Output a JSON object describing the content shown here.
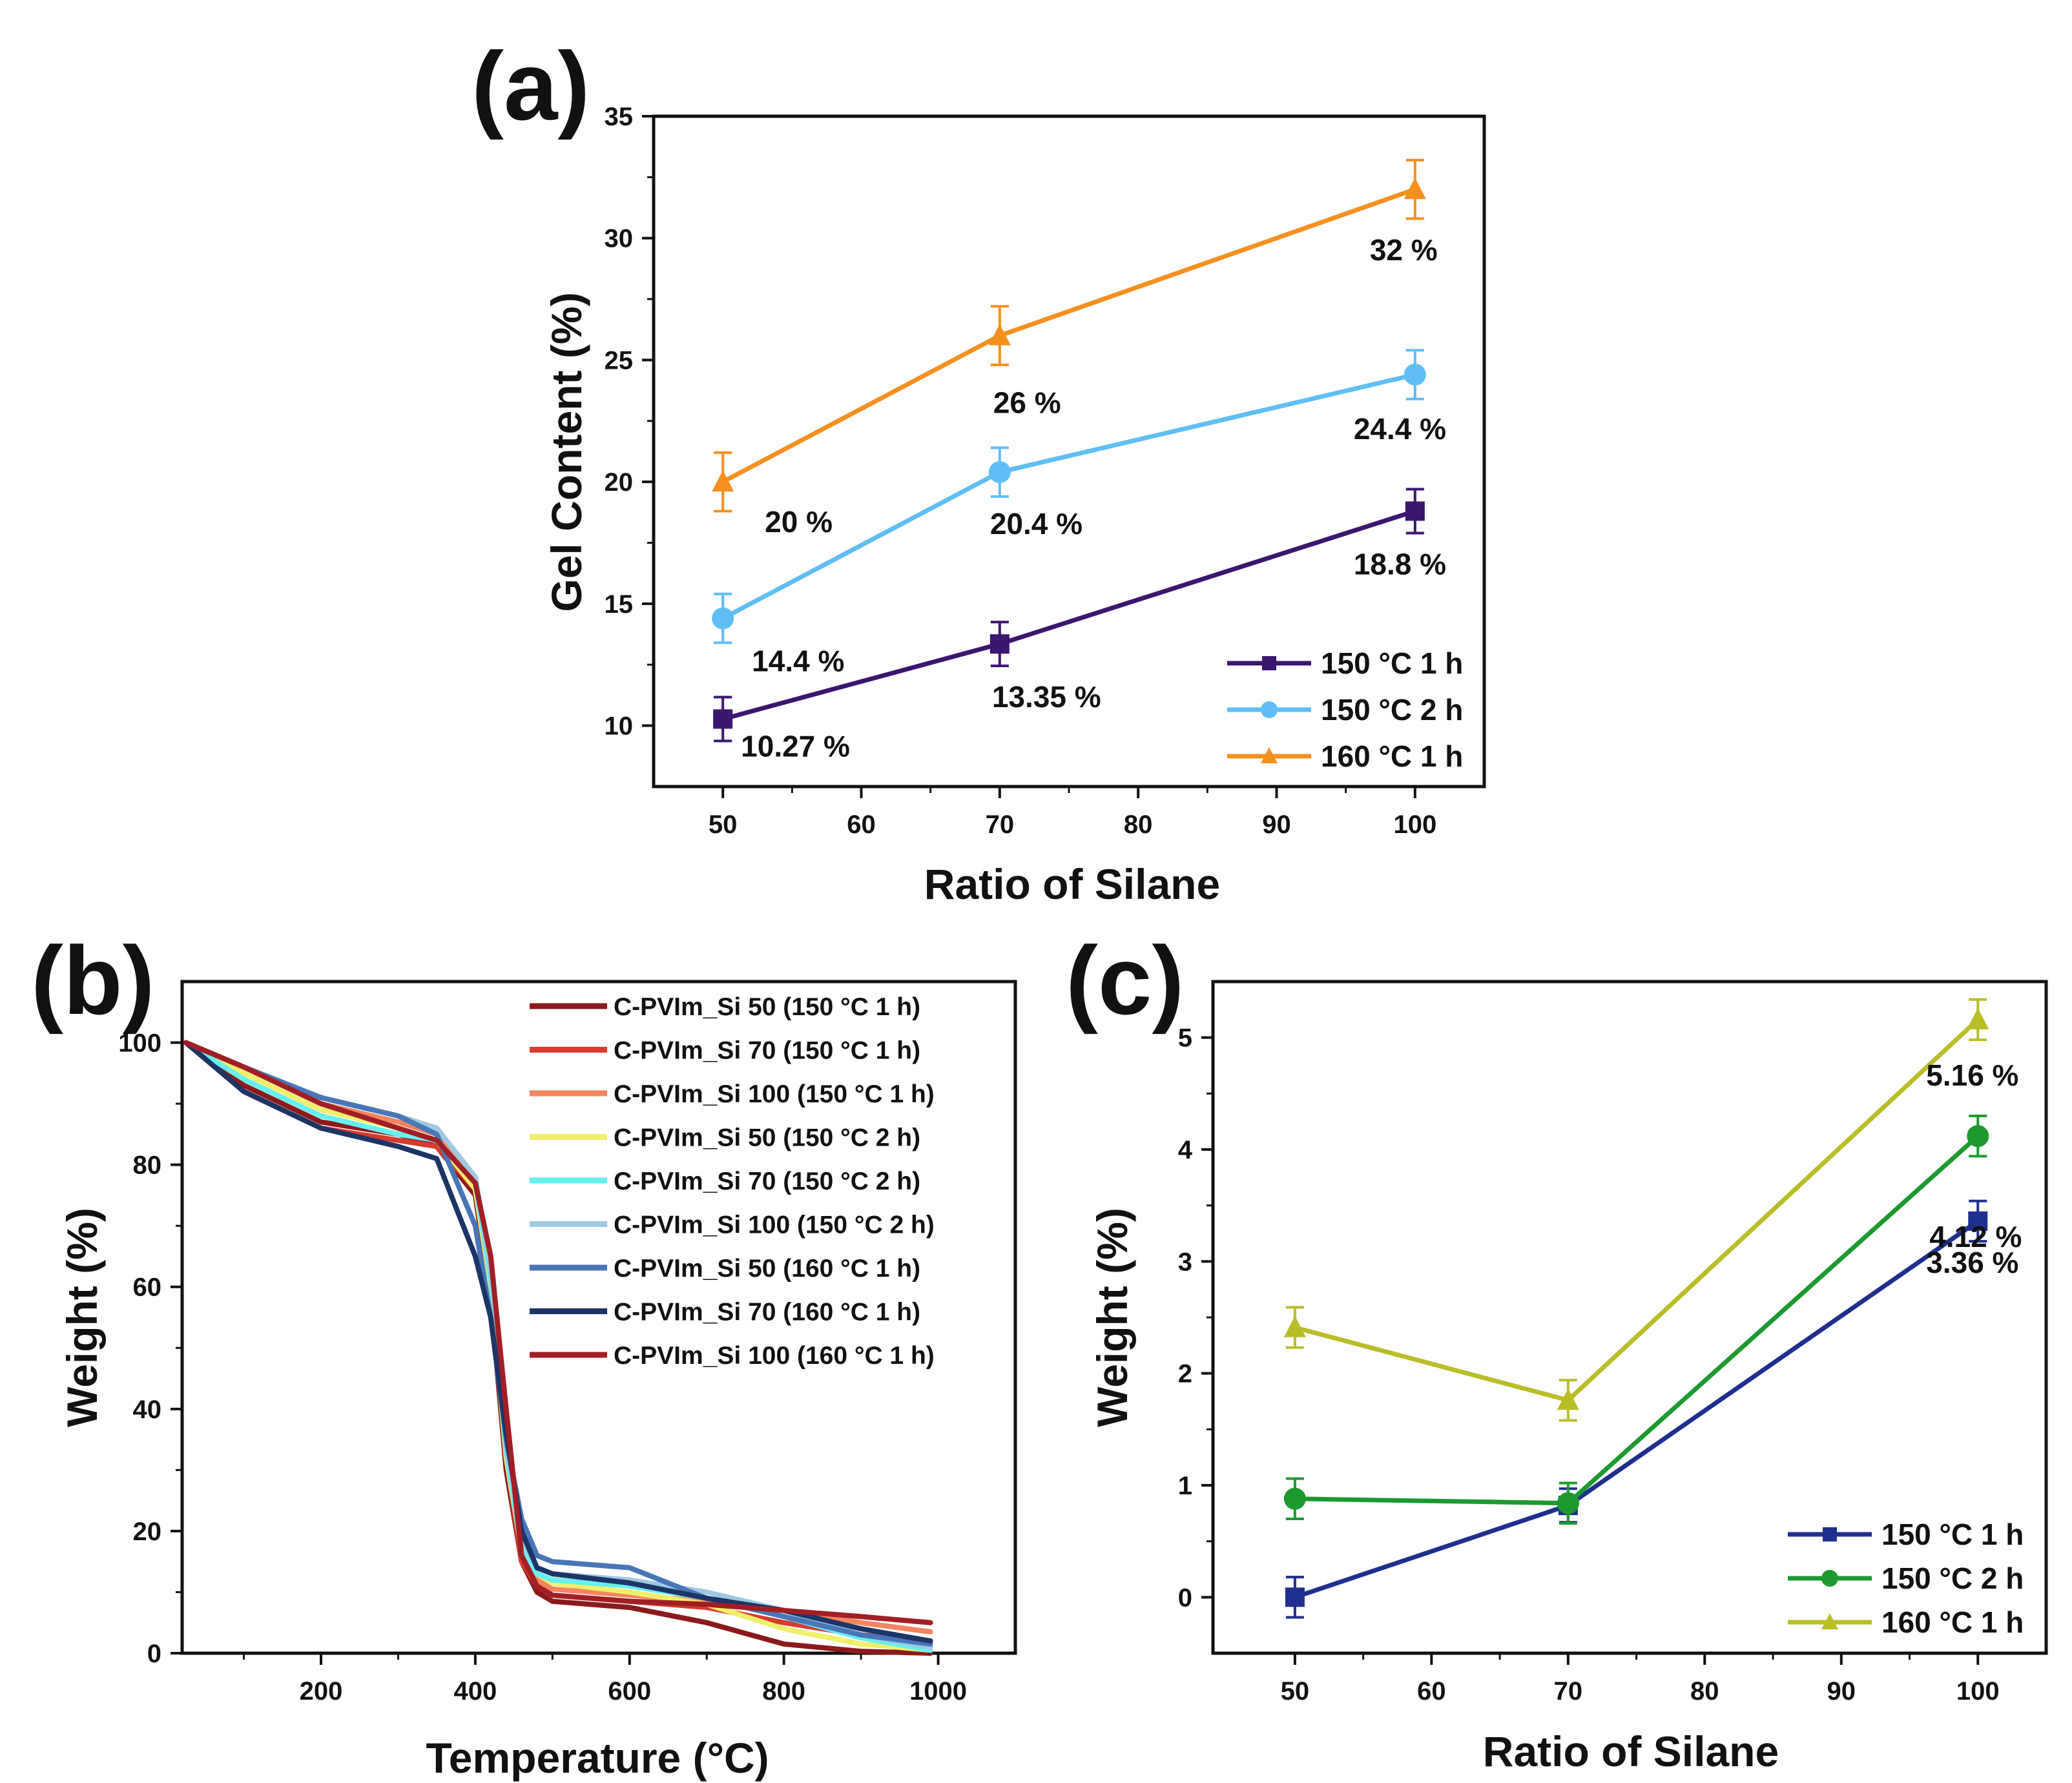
{
  "chart_data": [
    {
      "panel": "(a)",
      "type": "line",
      "xlabel": "Ratio of Silane",
      "ylabel": "Gel Content (%)",
      "x": [
        50,
        70,
        100
      ],
      "xlim": [
        45,
        105
      ],
      "ylim": [
        7.5,
        35
      ],
      "xticks": [
        "50",
        "60",
        "70",
        "80",
        "90",
        "100"
      ],
      "yticks": [
        "10",
        "15",
        "20",
        "25",
        "30",
        "35"
      ],
      "legend_position": "bottom-right",
      "series": [
        {
          "name": "150 °C 1 h",
          "color": "#3a1670",
          "marker": "square",
          "values": [
            10.27,
            13.35,
            18.8
          ],
          "errors": [
            0.9,
            0.9,
            0.9
          ],
          "labels": [
            "10.27 %",
            "13.35 %",
            "18.8 %"
          ]
        },
        {
          "name": "150 °C 2 h",
          "color": "#5fbef5",
          "marker": "circle",
          "values": [
            14.4,
            20.4,
            24.4
          ],
          "errors": [
            1.0,
            1.0,
            1.0
          ],
          "labels": [
            "14.4 %",
            "20.4 %",
            "24.4 %"
          ]
        },
        {
          "name": "160 °C 1 h",
          "color": "#f5901f",
          "marker": "triangle",
          "values": [
            20.0,
            26.0,
            32.0
          ],
          "errors": [
            1.2,
            1.2,
            1.2
          ],
          "labels": [
            "20 %",
            "26 %",
            "32 %"
          ]
        }
      ]
    },
    {
      "panel": "(b)",
      "type": "line",
      "xlabel": "Temperature (°C)",
      "ylabel": "Weight (%)",
      "xlim": [
        20,
        1100
      ],
      "ylim": [
        0,
        110
      ],
      "xticks": [
        "200",
        "400",
        "600",
        "800",
        "1000"
      ],
      "yticks": [
        "0",
        "20",
        "40",
        "60",
        "80",
        "100"
      ],
      "legend_position": "top-right",
      "series": [
        {
          "name": "C-PVIm_Si 50 (150 °C 1 h)",
          "color": "#8b1a1a",
          "x": [
            25,
            100,
            200,
            300,
            350,
            400,
            420,
            440,
            460,
            480,
            500,
            600,
            700,
            800,
            900,
            990
          ],
          "y": [
            100,
            93,
            87,
            85,
            83,
            75,
            58,
            30,
            15,
            10,
            8.5,
            7.5,
            5,
            1.5,
            0.3,
            0
          ]
        },
        {
          "name": "C-PVIm_Si 70 (150 °C 1 h)",
          "color": "#d83a2e",
          "x": [
            25,
            100,
            200,
            300,
            350,
            400,
            420,
            440,
            460,
            480,
            500,
            600,
            700,
            800,
            900,
            990
          ],
          "y": [
            100,
            92,
            86,
            84,
            83,
            76,
            60,
            32,
            15,
            11,
            9.5,
            8.5,
            7.5,
            5,
            3,
            2
          ]
        },
        {
          "name": "C-PVIm_Si 100 (150 °C 1 h)",
          "color": "#f4845f",
          "x": [
            25,
            100,
            200,
            300,
            350,
            400,
            420,
            440,
            460,
            480,
            500,
            600,
            700,
            800,
            900,
            990
          ],
          "y": [
            100,
            96,
            90,
            87,
            85,
            78,
            62,
            35,
            18,
            12,
            10.5,
            9.5,
            8.5,
            7,
            5,
            3.5
          ]
        },
        {
          "name": "C-PVIm_Si 50 (150 °C 2 h)",
          "color": "#f1ee6a",
          "x": [
            25,
            100,
            200,
            300,
            350,
            400,
            420,
            440,
            460,
            480,
            500,
            600,
            700,
            800,
            900,
            990
          ],
          "y": [
            100,
            95,
            89,
            86,
            84,
            76,
            60,
            32,
            17,
            13,
            11.5,
            10,
            8,
            4,
            1.5,
            0.5
          ]
        },
        {
          "name": "C-PVIm_Si 70 (150 °C 2 h)",
          "color": "#66f0f0",
          "x": [
            25,
            100,
            200,
            300,
            350,
            400,
            420,
            440,
            460,
            480,
            500,
            600,
            700,
            800,
            900,
            990
          ],
          "y": [
            100,
            94,
            88,
            85,
            84,
            77,
            61,
            33,
            17,
            13,
            12,
            11,
            9,
            6,
            2.5,
            0.5
          ]
        },
        {
          "name": "C-PVIm_Si 100 (150 °C 2 h)",
          "color": "#9ecae1",
          "x": [
            25,
            100,
            200,
            300,
            350,
            400,
            420,
            440,
            460,
            480,
            500,
            600,
            700,
            800,
            900,
            990
          ],
          "y": [
            100,
            96,
            91,
            88,
            86,
            78,
            63,
            34,
            19,
            14,
            13,
            12,
            10,
            7,
            3,
            1
          ]
        },
        {
          "name": "C-PVIm_Si 50 (160 °C 1 h)",
          "color": "#4876b8",
          "x": [
            25,
            100,
            200,
            300,
            350,
            400,
            420,
            440,
            460,
            480,
            500,
            600,
            700,
            800,
            900,
            990
          ],
          "y": [
            100,
            96,
            91,
            88,
            85,
            70,
            55,
            35,
            22,
            16,
            15,
            14,
            9,
            6,
            3,
            1.5
          ]
        },
        {
          "name": "C-PVIm_Si 70 (160 °C 1 h)",
          "color": "#1c3566",
          "x": [
            25,
            100,
            200,
            300,
            350,
            400,
            420,
            440,
            460,
            480,
            500,
            600,
            700,
            800,
            900,
            990
          ],
          "y": [
            100,
            92,
            86,
            83,
            81,
            65,
            55,
            36,
            20,
            14,
            13,
            11.5,
            9,
            7,
            4,
            2
          ]
        },
        {
          "name": "C-PVIm_Si 100 (160 °C 1 h)",
          "color": "#a11f24",
          "x": [
            25,
            100,
            200,
            300,
            350,
            400,
            420,
            440,
            460,
            480,
            500,
            600,
            700,
            800,
            900,
            990
          ],
          "y": [
            100,
            96,
            90,
            86,
            84,
            77,
            65,
            40,
            16,
            11,
            9.5,
            8.5,
            8,
            7,
            6,
            5
          ]
        }
      ]
    },
    {
      "panel": "(c)",
      "type": "line",
      "xlabel": "Ratio of Silane",
      "ylabel": "Weight (%)",
      "x": [
        50,
        70,
        100
      ],
      "xlim": [
        44,
        105
      ],
      "ylim": [
        -0.5,
        5.5
      ],
      "xticks": [
        "50",
        "60",
        "70",
        "80",
        "90",
        "100"
      ],
      "yticks": [
        "0",
        "1",
        "2",
        "3",
        "4",
        "5"
      ],
      "legend_position": "bottom-right",
      "series": [
        {
          "name": "150 °C 1 h",
          "color": "#1f2f8f",
          "marker": "square",
          "values": [
            0.0,
            0.82,
            3.36
          ],
          "errors": [
            0.18,
            0.15,
            0.18
          ],
          "labels": [
            "",
            "",
            "3.36 %"
          ]
        },
        {
          "name": "150 °C 2 h",
          "color": "#1c9a2f",
          "marker": "circle",
          "values": [
            0.88,
            0.84,
            4.12
          ],
          "errors": [
            0.18,
            0.18,
            0.18
          ],
          "labels": [
            "",
            "",
            "4.12 %"
          ]
        },
        {
          "name": "160 °C 1 h",
          "color": "#b9be26",
          "marker": "triangle",
          "values": [
            2.41,
            1.76,
            5.16
          ],
          "errors": [
            0.18,
            0.18,
            0.18
          ],
          "labels": [
            "",
            "",
            "5.16 %"
          ]
        }
      ]
    }
  ]
}
